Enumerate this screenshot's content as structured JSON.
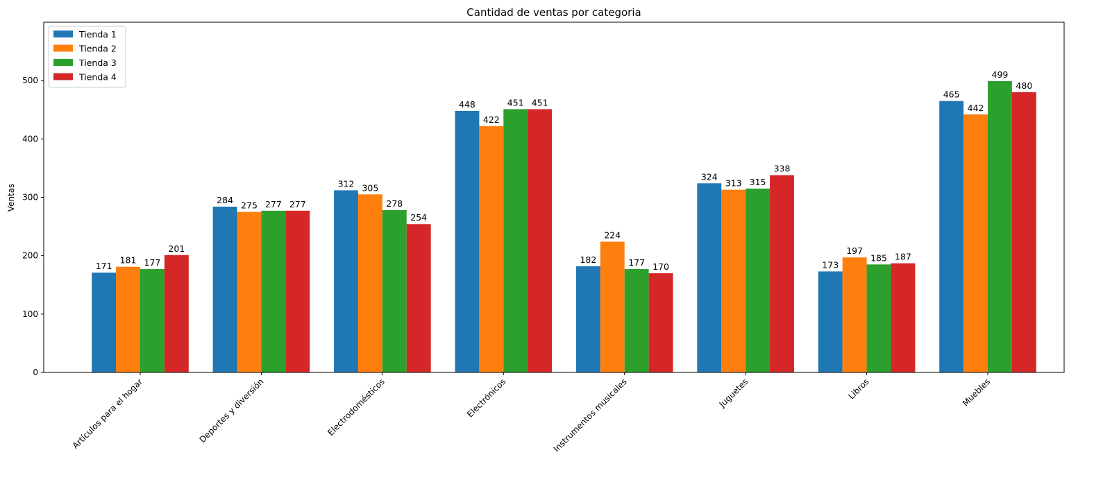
{
  "chart_data": {
    "type": "bar",
    "title": "Cantidad de ventas por categoria",
    "xlabel": "",
    "ylabel": "Ventas",
    "ylim": [
      0,
      600
    ],
    "yticks": [
      0,
      100,
      200,
      300,
      400,
      500
    ],
    "grid": false,
    "legend_position": "top-left",
    "categories": [
      "Artículos para el hogar",
      "Deportes y diversión",
      "Electrodomésticos",
      "Electrónicos",
      "Instrumentos musicales",
      "Juguetes",
      "Libros",
      "Muebles"
    ],
    "series": [
      {
        "name": "Tienda 1",
        "color": "#1f77b4",
        "values": [
          171,
          284,
          312,
          448,
          182,
          324,
          173,
          465
        ]
      },
      {
        "name": "Tienda 2",
        "color": "#ff7f0e",
        "values": [
          181,
          275,
          305,
          422,
          224,
          313,
          197,
          442
        ]
      },
      {
        "name": "Tienda 3",
        "color": "#2ca02c",
        "values": [
          177,
          277,
          278,
          451,
          177,
          315,
          185,
          499
        ]
      },
      {
        "name": "Tienda 4",
        "color": "#d62728",
        "values": [
          201,
          277,
          254,
          451,
          170,
          338,
          187,
          480
        ]
      }
    ]
  }
}
